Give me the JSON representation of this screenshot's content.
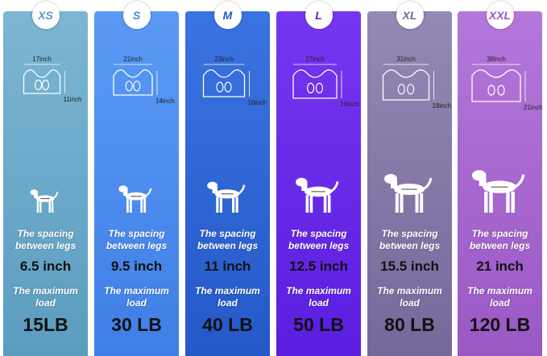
{
  "columns": [
    {
      "size": "XS",
      "width": "17inch",
      "height": "11inch",
      "spacing_label": "The spacing between legs",
      "spacing": "6.5 inch",
      "load_label": "The maximum load",
      "load": "15LB"
    },
    {
      "size": "S",
      "width": "21inch",
      "height": "14inch",
      "spacing_label": "The spacing between legs",
      "spacing": "9.5 inch",
      "load_label": "The maximum load",
      "load": "30 LB"
    },
    {
      "size": "M",
      "width": "23inch",
      "height": "16inch",
      "spacing_label": "The spacing between legs",
      "spacing": "11 inch",
      "load_label": "The maximum load",
      "load": "40 LB"
    },
    {
      "size": "L",
      "width": "27inch",
      "height": "16inch",
      "spacing_label": "The spacing between legs",
      "spacing": "12.5 inch",
      "load_label": "The maximum load",
      "load": "50 LB"
    },
    {
      "size": "XL",
      "width": "31inch",
      "height": "18inch",
      "spacing_label": "The spacing between legs",
      "spacing": "15.5 inch",
      "load_label": "The maximum load",
      "load": "80 LB"
    },
    {
      "size": "XXL",
      "width": "38inch",
      "height": "21inch",
      "spacing_label": "The spacing between legs",
      "spacing": "21 inch",
      "load_label": "The maximum load",
      "load": "120 LB"
    }
  ]
}
